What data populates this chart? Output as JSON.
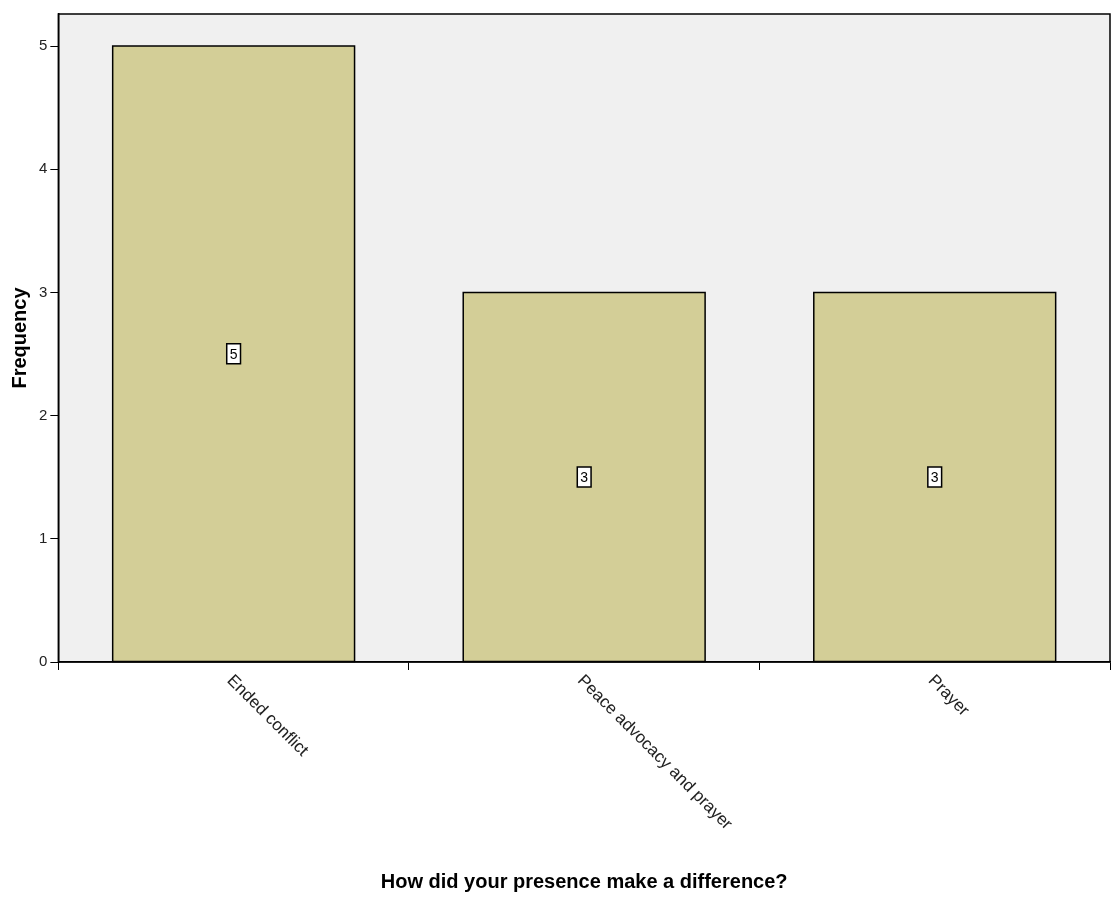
{
  "chart_data": {
    "type": "bar",
    "xlabel": "How did your presence make a difference?",
    "ylabel": "Frequency",
    "categories": [
      "Ended conflict",
      "Peace advocacy and prayer",
      "Prayer"
    ],
    "values": [
      5,
      3,
      3
    ],
    "color": "#d3ce97",
    "ylim": [
      0,
      5.26
    ],
    "yticks": [
      0,
      1,
      2,
      3,
      4,
      5
    ],
    "grid": false,
    "legend": false,
    "data_labels": true
  }
}
